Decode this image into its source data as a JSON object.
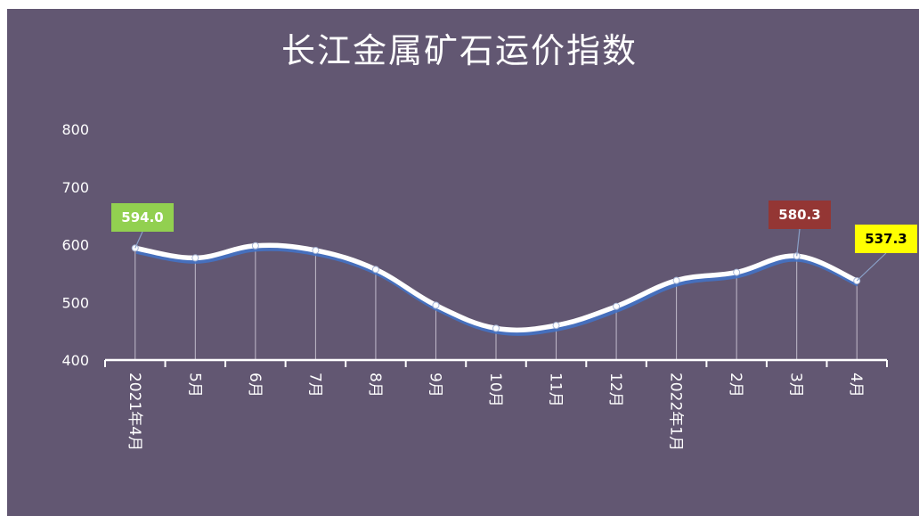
{
  "chart_data": {
    "type": "line",
    "title": "长江金属矿石运价指数",
    "categories": [
      "2021年4月",
      "5月",
      "6月",
      "7月",
      "8月",
      "9月",
      "10月",
      "11月",
      "12月",
      "2022年1月",
      "2月",
      "3月",
      "4月"
    ],
    "values": [
      594.0,
      577,
      598,
      590,
      557,
      495,
      455,
      460,
      493,
      538,
      552,
      580.3,
      537.3
    ],
    "ylim": [
      400,
      800
    ],
    "yticks": [
      400,
      500,
      600,
      700,
      800
    ],
    "grid": false,
    "data_labels": [
      {
        "index": 0,
        "text": "594.0",
        "bg": "#92d050",
        "fg": "#ffffff"
      },
      {
        "index": 11,
        "text": "580.3",
        "bg": "#943634",
        "fg": "#ffffff"
      },
      {
        "index": 12,
        "text": "537.3",
        "bg": "#ffff00",
        "fg": "#000000"
      }
    ],
    "colors": {
      "background": "#625772",
      "line": "#ffffff",
      "line_shadow": "#4472c4",
      "text": "#ffffff"
    }
  }
}
